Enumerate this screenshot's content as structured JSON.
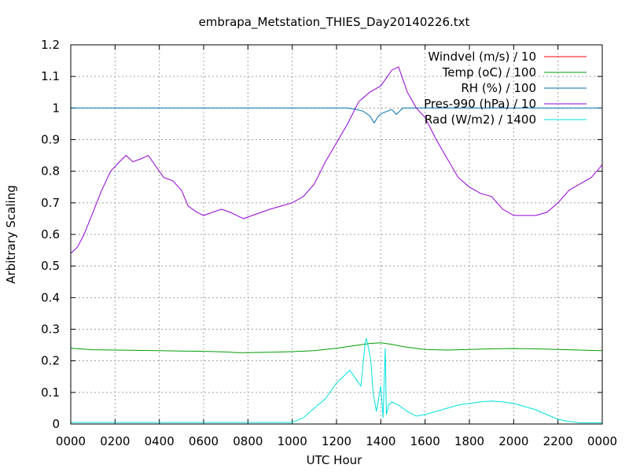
{
  "chart_data": {
    "type": "line",
    "title": "embrapa_Metstation_THIES_Day20140226.txt",
    "xlabel": "UTC Hour",
    "ylabel": "Arbitrary Scaling",
    "xlim": [
      0,
      24
    ],
    "ylim": [
      0,
      1.2
    ],
    "grid": true,
    "legend_position": "top-right",
    "xticks": [
      {
        "value": 0,
        "label": "0000"
      },
      {
        "value": 2,
        "label": "0200"
      },
      {
        "value": 4,
        "label": "0400"
      },
      {
        "value": 6,
        "label": "0600"
      },
      {
        "value": 8,
        "label": "0800"
      },
      {
        "value": 10,
        "label": "1000"
      },
      {
        "value": 12,
        "label": "1200"
      },
      {
        "value": 14,
        "label": "1400"
      },
      {
        "value": 16,
        "label": "1600"
      },
      {
        "value": 18,
        "label": "1800"
      },
      {
        "value": 20,
        "label": "2000"
      },
      {
        "value": 22,
        "label": "2200"
      },
      {
        "value": 24,
        "label": "0000"
      }
    ],
    "yticks": [
      {
        "value": 0,
        "label": "0"
      },
      {
        "value": 0.1,
        "label": "0.1"
      },
      {
        "value": 0.2,
        "label": "0.2"
      },
      {
        "value": 0.3,
        "label": "0.3"
      },
      {
        "value": 0.4,
        "label": "0.4"
      },
      {
        "value": 0.5,
        "label": "0.5"
      },
      {
        "value": 0.6,
        "label": "0.6"
      },
      {
        "value": 0.7,
        "label": "0.7"
      },
      {
        "value": 0.8,
        "label": "0.8"
      },
      {
        "value": 0.9,
        "label": "0.9"
      },
      {
        "value": 1.0,
        "label": "1"
      },
      {
        "value": 1.1,
        "label": "1.1"
      },
      {
        "value": 1.2,
        "label": "1.2"
      }
    ],
    "series": [
      {
        "name": "Windvel (m/s) / 10",
        "color": "#ff0000",
        "x": [],
        "y": []
      },
      {
        "name": "Temp (oC) / 100",
        "color": "#009e00",
        "x": [
          0,
          1,
          2,
          3,
          4,
          5,
          6,
          7,
          7.5,
          8,
          9,
          10,
          11,
          12,
          13,
          13.5,
          14,
          14.5,
          15,
          16,
          17,
          18,
          19,
          20,
          21,
          22,
          23,
          24
        ],
        "y": [
          0.24,
          0.235,
          0.234,
          0.233,
          0.232,
          0.231,
          0.23,
          0.228,
          0.226,
          0.226,
          0.227,
          0.229,
          0.232,
          0.24,
          0.25,
          0.255,
          0.257,
          0.252,
          0.245,
          0.236,
          0.234,
          0.236,
          0.238,
          0.239,
          0.238,
          0.236,
          0.234,
          0.232
        ]
      },
      {
        "name": "RH (%) / 100",
        "color": "#0072b2",
        "x": [
          0,
          12.5,
          12.9,
          13.2,
          13.5,
          13.7,
          13.9,
          14.1,
          14.3,
          14.5,
          14.7,
          15,
          24
        ],
        "y": [
          1.0,
          1.0,
          0.995,
          0.99,
          0.975,
          0.953,
          0.975,
          0.985,
          0.99,
          0.995,
          0.98,
          1.0,
          1.0
        ]
      },
      {
        "name": "Pres-990 (hPa) / 10",
        "color": "#9400d3",
        "x": [
          0,
          0.3,
          0.6,
          1.0,
          1.4,
          1.8,
          2.2,
          2.5,
          2.8,
          3.2,
          3.5,
          3.8,
          4.2,
          4.6,
          5.0,
          5.3,
          5.7,
          6.0,
          6.4,
          6.8,
          7.2,
          7.5,
          7.8,
          8.2,
          8.6,
          9.0,
          9.5,
          10.0,
          10.5,
          11.0,
          11.5,
          12.0,
          12.5,
          13.0,
          13.5,
          14.0,
          14.5,
          14.8,
          15.2,
          15.6,
          16.0,
          16.5,
          17.0,
          17.5,
          18.0,
          18.5,
          19.0,
          19.5,
          20.0,
          20.5,
          21.0,
          21.5,
          22.0,
          22.5,
          23.0,
          23.5,
          24.0
        ],
        "y": [
          0.54,
          0.56,
          0.6,
          0.67,
          0.74,
          0.8,
          0.83,
          0.85,
          0.83,
          0.84,
          0.85,
          0.82,
          0.78,
          0.77,
          0.74,
          0.69,
          0.67,
          0.66,
          0.67,
          0.68,
          0.67,
          0.66,
          0.65,
          0.66,
          0.67,
          0.68,
          0.69,
          0.7,
          0.72,
          0.76,
          0.83,
          0.89,
          0.95,
          1.02,
          1.05,
          1.07,
          1.12,
          1.13,
          1.05,
          1.0,
          0.97,
          0.9,
          0.84,
          0.78,
          0.75,
          0.73,
          0.72,
          0.68,
          0.66,
          0.66,
          0.66,
          0.67,
          0.7,
          0.74,
          0.76,
          0.78,
          0.82
        ]
      },
      {
        "name": "Rad (W/m2) / 1400",
        "color": "#00e0e0",
        "x": [
          0,
          9.5,
          10.0,
          10.5,
          11.0,
          11.5,
          12.0,
          12.3,
          12.6,
          12.9,
          13.1,
          13.3,
          13.35,
          13.45,
          13.55,
          13.65,
          13.8,
          14.0,
          14.1,
          14.2,
          14.25,
          14.35,
          14.5,
          14.8,
          15.2,
          15.6,
          16.0,
          16.5,
          17.0,
          17.5,
          18.0,
          18.5,
          19.0,
          19.5,
          20.0,
          20.5,
          21.0,
          21.5,
          22.0,
          22.5,
          23.0,
          24.0
        ],
        "y": [
          0.005,
          0.005,
          0.005,
          0.02,
          0.05,
          0.08,
          0.13,
          0.15,
          0.17,
          0.14,
          0.12,
          0.26,
          0.27,
          0.24,
          0.2,
          0.1,
          0.04,
          0.12,
          0.02,
          0.24,
          0.03,
          0.06,
          0.07,
          0.06,
          0.04,
          0.025,
          0.03,
          0.04,
          0.05,
          0.06,
          0.065,
          0.07,
          0.073,
          0.07,
          0.065,
          0.055,
          0.045,
          0.03,
          0.015,
          0.008,
          0.004,
          0.004
        ]
      }
    ]
  }
}
